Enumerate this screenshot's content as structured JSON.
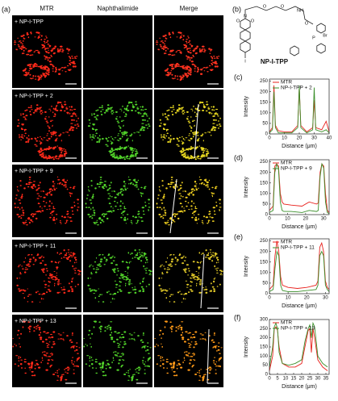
{
  "panel_a": {
    "label": "(a)",
    "columns": [
      "MTR",
      "Naphthalimide",
      "Merge"
    ],
    "rows": [
      "+ NP-I-TPP",
      "+ NP-I-TPP + 2",
      "+ NP-I-TPP + 9",
      "+ NP-I-TPP + 11",
      "+ NP-I-TPP + 13"
    ]
  },
  "panel_b": {
    "label": "(b)",
    "compound": "NP-I-TPP",
    "atoms": [
      "O",
      "O",
      "N",
      "O",
      "O",
      "NH",
      "O",
      "I",
      "P",
      "Br"
    ]
  },
  "chart_data": [
    {
      "type": "line",
      "label": "(c)",
      "xlabel": "Distance (μm)",
      "ylabel": "Intensity",
      "x": [
        0,
        2,
        3,
        4,
        6,
        10,
        15,
        19,
        20,
        21,
        25,
        29,
        30,
        31,
        35,
        38,
        40
      ],
      "series": [
        {
          "name": "MTR",
          "color": "#e8201c",
          "values": [
            10,
            30,
            230,
            40,
            15,
            10,
            10,
            40,
            220,
            40,
            10,
            30,
            160,
            30,
            20,
            60,
            10
          ]
        },
        {
          "name": "NP-I-TPP + 2",
          "color": "#3a8f2a",
          "values": [
            5,
            20,
            200,
            30,
            5,
            5,
            5,
            30,
            230,
            30,
            5,
            20,
            220,
            20,
            10,
            20,
            5
          ]
        }
      ],
      "xlim": [
        0,
        40
      ],
      "ylim": [
        0,
        260
      ],
      "xticks": [
        0,
        10,
        20,
        30,
        40
      ],
      "yticks": [
        0,
        50,
        100,
        150,
        200,
        250
      ]
    },
    {
      "type": "line",
      "label": "(d)",
      "xlabel": "Distance (μm)",
      "ylabel": "Intensity",
      "x": [
        0,
        2,
        3,
        4,
        5,
        6,
        7,
        8,
        12,
        18,
        22,
        26,
        27,
        28,
        29,
        30,
        31,
        32,
        33
      ],
      "series": [
        {
          "name": "MTR",
          "color": "#e8201c",
          "values": [
            20,
            40,
            230,
            240,
            230,
            100,
            60,
            50,
            45,
            40,
            60,
            50,
            55,
            200,
            240,
            230,
            100,
            20,
            10
          ]
        },
        {
          "name": "NP-I-TPP + 9",
          "color": "#3a8f2a",
          "values": [
            10,
            20,
            200,
            240,
            220,
            60,
            20,
            15,
            15,
            10,
            20,
            15,
            20,
            180,
            240,
            220,
            60,
            10,
            5
          ]
        }
      ],
      "xlim": [
        0,
        33
      ],
      "ylim": [
        0,
        260
      ],
      "xticks": [
        0,
        10,
        20,
        30
      ],
      "yticks": [
        0,
        50,
        100,
        150,
        200,
        250
      ]
    },
    {
      "type": "line",
      "label": "(e)",
      "xlabel": "Distance (μm)",
      "ylabel": "Intensity",
      "x": [
        0,
        2,
        3,
        4,
        5,
        6,
        7,
        10,
        15,
        20,
        25,
        26,
        27,
        28,
        29,
        30,
        31,
        32
      ],
      "series": [
        {
          "name": "MTR",
          "color": "#e8201c",
          "values": [
            20,
            40,
            180,
            250,
            200,
            80,
            40,
            30,
            25,
            30,
            40,
            60,
            220,
            240,
            200,
            60,
            30,
            20
          ]
        },
        {
          "name": "NP-I-TPP + 11",
          "color": "#3a8f2a",
          "values": [
            10,
            20,
            120,
            200,
            180,
            40,
            15,
            10,
            10,
            15,
            20,
            40,
            180,
            200,
            180,
            40,
            20,
            10
          ]
        }
      ],
      "xlim": [
        0,
        32
      ],
      "ylim": [
        0,
        260
      ],
      "xticks": [
        0,
        10,
        20,
        30
      ],
      "yticks": [
        0,
        50,
        100,
        150,
        200,
        250
      ]
    },
    {
      "type": "line",
      "label": "(f)",
      "xlabel": "Distance (μm)",
      "ylabel": "Intensity",
      "x": [
        0,
        2,
        3,
        4,
        5,
        6,
        8,
        12,
        16,
        20,
        22,
        24,
        25,
        26,
        27,
        28,
        30,
        33,
        36
      ],
      "series": [
        {
          "name": "MTR",
          "color": "#e8201c",
          "values": [
            20,
            100,
            250,
            260,
            240,
            150,
            60,
            40,
            40,
            60,
            150,
            240,
            250,
            120,
            250,
            200,
            80,
            40,
            20
          ]
        },
        {
          "name": "NP-I-TPP + 13",
          "color": "#3a8f2a",
          "values": [
            40,
            150,
            260,
            280,
            250,
            120,
            60,
            50,
            60,
            80,
            180,
            250,
            270,
            200,
            280,
            260,
            100,
            60,
            40
          ]
        }
      ],
      "xlim": [
        0,
        37
      ],
      "ylim": [
        0,
        300
      ],
      "xticks": [
        0,
        5,
        10,
        15,
        20,
        25,
        30,
        35
      ],
      "yticks": [
        0,
        50,
        100,
        150,
        200,
        250,
        300
      ]
    }
  ]
}
